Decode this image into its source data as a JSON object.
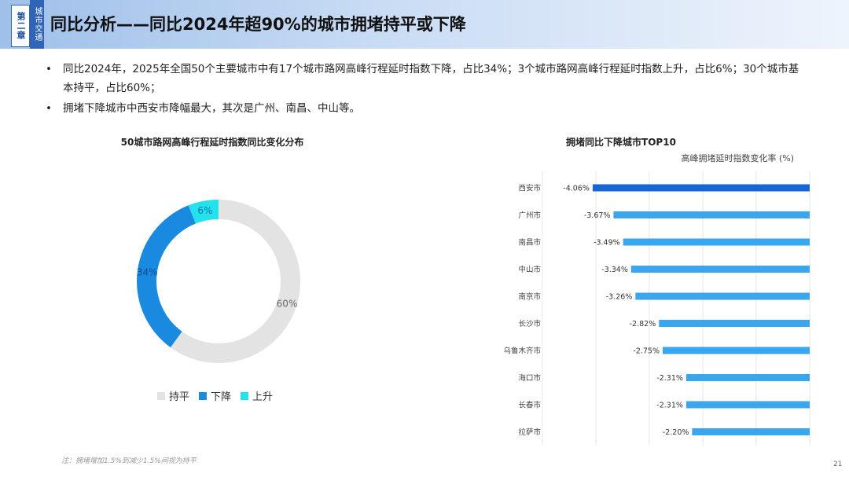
{
  "header": {
    "chapter_tag": "第二章",
    "section_tag": "城市交通",
    "title": "同比分析——同比2024年超90%的城市拥堵持平或下降"
  },
  "bullets": [
    "同比2024年，2025年全国50个主要城市中有17个城市路网高峰行程延时指数下降，占比34%；3个城市路网高峰行程延时指数上升，占比6%；30个城市基本持平，占比60%；",
    "拥堵下降城市中西安市降幅最大，其次是广州、南昌、中山等。"
  ],
  "footnote": "注：拥堵增加1.5%到减少1.5%间视为持平",
  "page_number": "21",
  "chart_data": [
    {
      "type": "pie",
      "title": "50城市路网高峰行程延时指数同比变化分布",
      "categories": [
        "持平",
        "下降",
        "上升"
      ],
      "values": [
        60,
        34,
        6
      ],
      "labels": [
        "60%",
        "34%",
        "6%"
      ],
      "colors": [
        "#e3e3e3",
        "#1a8ae0",
        "#22e2ec"
      ],
      "donut": true,
      "legend": "bottom"
    },
    {
      "type": "bar",
      "orientation": "horizontal",
      "title": "拥堵同比下降城市TOP10",
      "xlabel": "高峰拥堵延时指数变化率 (%)",
      "categories": [
        "西安市",
        "广州市",
        "南昌市",
        "中山市",
        "南京市",
        "长沙市",
        "乌鲁木齐市",
        "海口市",
        "长春市",
        "拉萨市"
      ],
      "values": [
        -4.06,
        -3.67,
        -3.49,
        -3.34,
        -3.26,
        -2.82,
        -2.75,
        -2.31,
        -2.31,
        -2.2
      ],
      "value_labels": [
        "-4.06%",
        "-3.67%",
        "-3.49%",
        "-3.34%",
        "-3.26%",
        "-2.82%",
        "-2.75%",
        "-2.31%",
        "-2.31%",
        "-2.20%"
      ],
      "xlim": [
        -5,
        0
      ],
      "grid": true,
      "colors": {
        "top": "#1766d6",
        "rest": "#3aa6ee"
      }
    }
  ]
}
